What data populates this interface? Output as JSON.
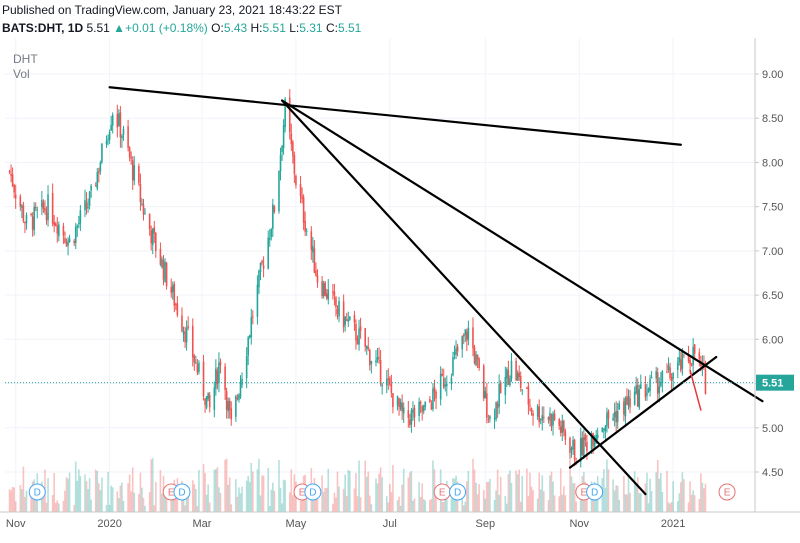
{
  "header": {
    "published": "Published on TradingView.com, January 23, 2021 18:43:22 EST",
    "symbol": "BATS:DHT, 1D",
    "last": "5.51",
    "change_arrow": "▲",
    "change": "+0.01 (+0.18%)",
    "o_label": "O:",
    "o_value": "5.43",
    "h_label": "H:",
    "h_value": "5.51",
    "l_label": "L:",
    "l_value": "5.31",
    "c_label": "C:",
    "c_value": "5.51"
  },
  "pane": {
    "symbol_label": "DHT",
    "volume_label": "Vol"
  },
  "colors": {
    "up": "#26a69a",
    "down": "#ef5350",
    "last_price_line": "#26a69a",
    "trendline": "#000000",
    "mark": "#e53935"
  },
  "chart_data": {
    "type": "candlestick",
    "symbol": "BATS:DHT",
    "interval": "1D",
    "y_ticks": [
      "9.00",
      "8.50",
      "8.00",
      "7.50",
      "7.00",
      "6.50",
      "6.00",
      "5.50",
      "5.00",
      "4.50"
    ],
    "ylim": [
      4.25,
      9.25
    ],
    "x_ticks": [
      "Nov",
      "2020",
      "Mar",
      "May",
      "Jul",
      "Sep",
      "Nov",
      "2021"
    ],
    "last_price": "5.51",
    "events": [
      {
        "type": "dividend",
        "label": "D",
        "x": "2019-11-15"
      },
      {
        "type": "earnings",
        "label": "E",
        "x": "2020-02-10"
      },
      {
        "type": "dividend",
        "label": "D",
        "x": "2020-02-17"
      },
      {
        "type": "earnings",
        "label": "E",
        "x": "2020-05-05"
      },
      {
        "type": "dividend",
        "label": "D",
        "x": "2020-05-12"
      },
      {
        "type": "earnings",
        "label": "E",
        "x": "2020-08-04"
      },
      {
        "type": "dividend",
        "label": "D",
        "x": "2020-08-14"
      },
      {
        "type": "earnings",
        "label": "E",
        "x": "2020-11-04"
      },
      {
        "type": "dividend",
        "label": "D",
        "x": "2020-11-11"
      },
      {
        "type": "earnings",
        "label": "E",
        "x": "2021-02-05"
      }
    ],
    "price_path": [
      [
        "2019-10-28",
        7.9
      ],
      [
        "2019-11-08",
        7.3
      ],
      [
        "2019-11-22",
        7.5
      ],
      [
        "2019-12-06",
        7.1
      ],
      [
        "2019-12-20",
        7.6
      ],
      [
        "2020-01-03",
        8.6
      ],
      [
        "2020-01-10",
        8.3
      ],
      [
        "2020-01-24",
        7.4
      ],
      [
        "2020-02-07",
        6.7
      ],
      [
        "2020-02-21",
        6.0
      ],
      [
        "2020-03-06",
        5.2
      ],
      [
        "2020-03-13",
        5.8
      ],
      [
        "2020-03-20",
        5.0
      ],
      [
        "2020-04-03",
        6.3
      ],
      [
        "2020-04-17",
        7.5
      ],
      [
        "2020-04-24",
        8.6
      ],
      [
        "2020-05-01",
        7.8
      ],
      [
        "2020-05-15",
        6.7
      ],
      [
        "2020-05-29",
        6.3
      ],
      [
        "2020-06-12",
        6.0
      ],
      [
        "2020-06-26",
        5.6
      ],
      [
        "2020-07-10",
        5.1
      ],
      [
        "2020-07-24",
        5.2
      ],
      [
        "2020-08-07",
        5.6
      ],
      [
        "2020-08-21",
        6.1
      ],
      [
        "2020-09-04",
        5.1
      ],
      [
        "2020-09-18",
        5.7
      ],
      [
        "2020-10-02",
        5.2
      ],
      [
        "2020-10-16",
        5.1
      ],
      [
        "2020-10-30",
        4.7
      ],
      [
        "2020-11-13",
        5.0
      ],
      [
        "2020-11-27",
        5.2
      ],
      [
        "2020-12-11",
        5.4
      ],
      [
        "2020-12-31",
        5.6
      ],
      [
        "2021-01-15",
        5.85
      ],
      [
        "2021-01-22",
        5.51
      ]
    ],
    "trendlines": [
      {
        "from": [
          "2020-01-01",
          8.85
        ],
        "to": [
          "2021-01-06",
          8.2
        ]
      },
      {
        "from": [
          "2020-04-22",
          8.7
        ],
        "to": [
          "2021-02-28",
          5.3
        ]
      },
      {
        "from": [
          "2020-04-22",
          8.7
        ],
        "to": [
          "2020-12-14",
          4.25
        ]
      },
      {
        "from": [
          "2020-10-26",
          4.55
        ],
        "to": [
          "2021-01-29",
          5.8
        ]
      },
      {
        "from": [
          "2021-01-12",
          5.65
        ],
        "to": [
          "2021-01-19",
          5.2
        ],
        "color": "red"
      }
    ]
  }
}
